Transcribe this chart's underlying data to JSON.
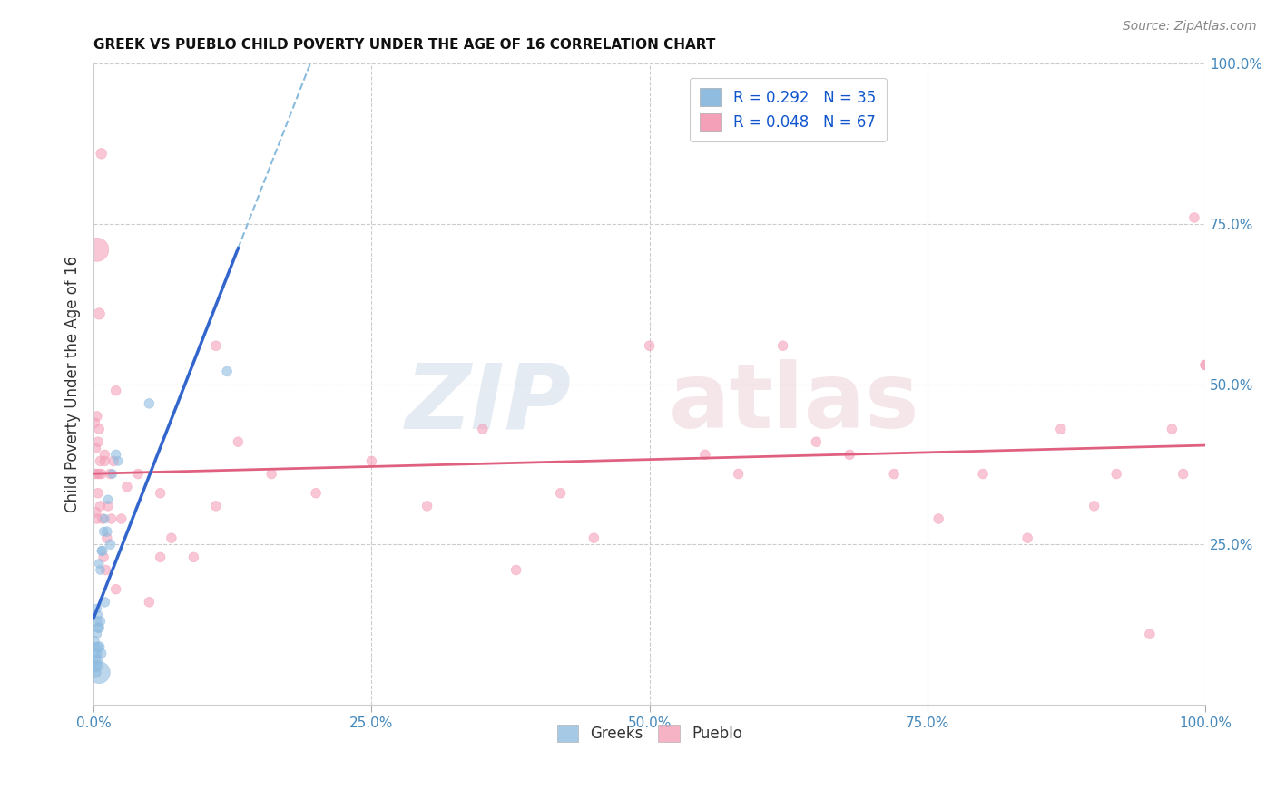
{
  "title": "GREEK VS PUEBLO CHILD POVERTY UNDER THE AGE OF 16 CORRELATION CHART",
  "source": "Source: ZipAtlas.com",
  "ylabel": "Child Poverty Under the Age of 16",
  "xlim": [
    0,
    1
  ],
  "ylim": [
    0,
    1
  ],
  "xticks": [
    0,
    0.25,
    0.5,
    0.75,
    1.0
  ],
  "yticks": [
    0,
    0.25,
    0.5,
    0.75,
    1.0
  ],
  "xticklabels": [
    "0.0%",
    "25.0%",
    "50.0%",
    "75.0%",
    "100.0%"
  ],
  "yticklabels": [
    "",
    "25.0%",
    "50.0%",
    "75.0%",
    "100.0%"
  ],
  "background_color": "#ffffff",
  "grid_color": "#cccccc",
  "greek_color": "#90bce0",
  "pueblo_color": "#f4a0b8",
  "greek_line_color": "#3366cc",
  "pueblo_line_color": "#e06080",
  "dashed_line_color": "#88bbdd",
  "legend_r_label_greek": "R = 0.292   N = 35",
  "legend_r_label_pueblo": "R = 0.048   N = 67",
  "legend_label_greek": "Greeks",
  "legend_label_pueblo": "Pueblo",
  "watermark1_text": "ZIP",
  "watermark2_text": "atlas",
  "greeks_x": [
    0.001,
    0.001,
    0.001,
    0.002,
    0.002,
    0.002,
    0.003,
    0.003,
    0.003,
    0.003,
    0.003,
    0.004,
    0.004,
    0.004,
    0.004,
    0.005,
    0.005,
    0.005,
    0.005,
    0.006,
    0.006,
    0.007,
    0.007,
    0.008,
    0.009,
    0.01,
    0.01,
    0.012,
    0.013,
    0.015,
    0.017,
    0.02,
    0.022,
    0.05,
    0.12
  ],
  "greeks_y": [
    0.06,
    0.08,
    0.1,
    0.05,
    0.07,
    0.09,
    0.06,
    0.08,
    0.11,
    0.13,
    0.15,
    0.07,
    0.09,
    0.12,
    0.14,
    0.05,
    0.09,
    0.12,
    0.22,
    0.13,
    0.21,
    0.08,
    0.24,
    0.24,
    0.27,
    0.16,
    0.29,
    0.27,
    0.32,
    0.25,
    0.36,
    0.39,
    0.38,
    0.47,
    0.52
  ],
  "greeks_size": [
    80,
    60,
    50,
    70,
    60,
    50,
    80,
    60,
    50,
    60,
    50,
    60,
    50,
    60,
    50,
    300,
    70,
    60,
    50,
    60,
    50,
    60,
    50,
    60,
    50,
    60,
    50,
    60,
    50,
    60,
    50,
    60,
    50,
    60,
    60
  ],
  "pueblo_x": [
    0.001,
    0.001,
    0.002,
    0.002,
    0.003,
    0.003,
    0.003,
    0.004,
    0.004,
    0.005,
    0.005,
    0.006,
    0.006,
    0.007,
    0.008,
    0.009,
    0.01,
    0.011,
    0.012,
    0.013,
    0.015,
    0.016,
    0.018,
    0.02,
    0.025,
    0.03,
    0.04,
    0.05,
    0.06,
    0.07,
    0.09,
    0.11,
    0.13,
    0.16,
    0.2,
    0.25,
    0.3,
    0.35,
    0.38,
    0.42,
    0.45,
    0.5,
    0.55,
    0.58,
    0.62,
    0.65,
    0.68,
    0.72,
    0.76,
    0.8,
    0.84,
    0.87,
    0.9,
    0.92,
    0.95,
    0.97,
    0.98,
    0.99,
    1.0,
    1.0,
    0.003,
    0.005,
    0.007,
    0.01,
    0.02,
    0.06,
    0.11
  ],
  "pueblo_y": [
    0.36,
    0.44,
    0.4,
    0.3,
    0.29,
    0.36,
    0.45,
    0.33,
    0.41,
    0.36,
    0.43,
    0.31,
    0.38,
    0.36,
    0.29,
    0.23,
    0.38,
    0.21,
    0.26,
    0.31,
    0.36,
    0.29,
    0.38,
    0.18,
    0.29,
    0.34,
    0.36,
    0.16,
    0.33,
    0.26,
    0.23,
    0.31,
    0.41,
    0.36,
    0.33,
    0.38,
    0.31,
    0.43,
    0.21,
    0.33,
    0.26,
    0.56,
    0.39,
    0.36,
    0.56,
    0.41,
    0.39,
    0.36,
    0.29,
    0.36,
    0.26,
    0.43,
    0.31,
    0.36,
    0.11,
    0.43,
    0.36,
    0.76,
    0.53,
    0.53,
    0.71,
    0.61,
    0.86,
    0.39,
    0.49,
    0.23,
    0.56
  ],
  "pueblo_size": [
    60,
    60,
    60,
    60,
    60,
    60,
    60,
    60,
    60,
    60,
    60,
    60,
    60,
    60,
    60,
    60,
    60,
    60,
    60,
    60,
    60,
    60,
    60,
    60,
    60,
    60,
    60,
    60,
    60,
    60,
    60,
    60,
    60,
    60,
    60,
    60,
    60,
    60,
    60,
    60,
    60,
    60,
    60,
    60,
    60,
    60,
    60,
    60,
    60,
    60,
    60,
    60,
    60,
    60,
    60,
    60,
    60,
    60,
    60,
    60,
    350,
    80,
    70,
    60,
    60,
    60,
    60
  ],
  "greek_trend_x_solid_end": 0.13,
  "tick_label_color": "#4488bb"
}
